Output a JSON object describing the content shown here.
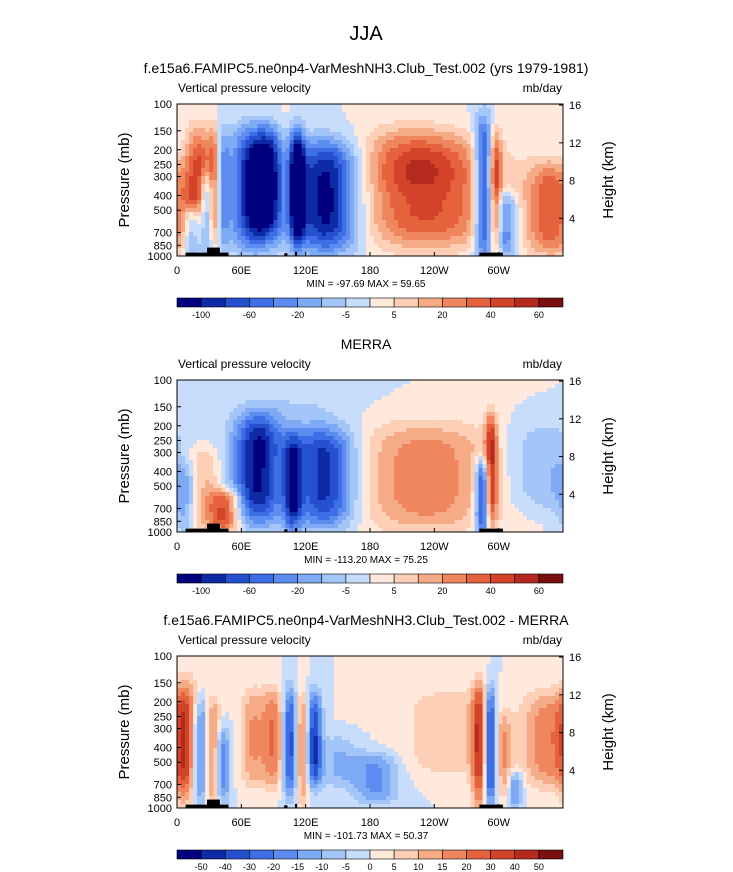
{
  "figure": {
    "title": "JJA"
  },
  "chart_data": [
    {
      "type": "heatmap",
      "title": "f.e15a6.FAMIPC5.ne0np4-VarMeshNH3.Club_Test.002 (yrs 1979-1981)",
      "left_label": "Vertical pressure velocity",
      "right_label": "mb/day",
      "ylabel": "Pressure (mb)",
      "y2label": "Height (km)",
      "yticks": [
        "100",
        "150",
        "200",
        "250",
        "300",
        "400",
        "500",
        "700",
        "850",
        "1000"
      ],
      "y2ticks": [
        "4",
        "8",
        "12",
        "16"
      ],
      "xticks": [
        "0",
        "60E",
        "120E",
        "180",
        "120W",
        "60W"
      ],
      "stats": "MIN = -97.69  MAX =  59.65",
      "colorbar": {
        "labels": [
          "-100",
          "-60",
          "-20",
          "-5",
          "5",
          "20",
          "40",
          "60"
        ],
        "colors": [
          "#00007f",
          "#0e2aa6",
          "#2550d0",
          "#3d6ee6",
          "#5c8cf0",
          "#7ea9f5",
          "#a3c5f8",
          "#c8ddfb",
          "#fee9dc",
          "#fccfb6",
          "#f6ab87",
          "#ef865d",
          "#e5623c",
          "#d3432a",
          "#b42a1e",
          "#7a0f0f"
        ]
      },
      "structure": [
        {
          "lon": 20,
          "w": 9,
          "p0": 150,
          "p1": 1000,
          "v": 40
        },
        {
          "lon": 15,
          "w": 6,
          "p0": 500,
          "p1": 1000,
          "v": -45
        },
        {
          "lon": 28,
          "w": 5,
          "p0": 300,
          "p1": 1000,
          "v": -40
        },
        {
          "lon": 35,
          "w": 4,
          "p0": 150,
          "p1": 900,
          "v": 35
        },
        {
          "lon": 42,
          "w": 5,
          "p0": 150,
          "p1": 900,
          "v": -25
        },
        {
          "lon": 72,
          "w": 14,
          "p0": 150,
          "p1": 850,
          "v": -60
        },
        {
          "lon": 88,
          "w": 9,
          "p0": 150,
          "p1": 700,
          "v": -30
        },
        {
          "lon": 112,
          "w": 5,
          "p0": 150,
          "p1": 800,
          "v": -55
        },
        {
          "lon": 140,
          "w": 22,
          "p0": 180,
          "p1": 900,
          "v": -60
        },
        {
          "lon": 100,
          "w": 5,
          "p0": 120,
          "p1": 600,
          "v": 6
        },
        {
          "lon": 232,
          "w": 45,
          "p0": 170,
          "p1": 850,
          "v": 40
        },
        {
          "lon": 218,
          "w": 30,
          "p0": 130,
          "p1": 350,
          "v": 10
        },
        {
          "lon": 286,
          "w": 6,
          "p0": 130,
          "p1": 1000,
          "v": -55
        },
        {
          "lon": 297,
          "w": 4,
          "p0": 150,
          "p1": 1000,
          "v": 35
        },
        {
          "lon": 306,
          "w": 8,
          "p0": 400,
          "p1": 950,
          "v": -35
        },
        {
          "lon": 348,
          "w": 16,
          "p0": 250,
          "p1": 950,
          "v": 35
        }
      ]
    },
    {
      "type": "heatmap",
      "title": "MERRA",
      "left_label": "Vertical pressure velocity",
      "right_label": "mb/day",
      "ylabel": "Pressure (mb)",
      "y2label": "Height (km)",
      "yticks": [
        "100",
        "150",
        "200",
        "250",
        "300",
        "400",
        "500",
        "700",
        "850",
        "1000"
      ],
      "y2ticks": [
        "4",
        "8",
        "12",
        "16"
      ],
      "xticks": [
        "0",
        "60E",
        "120E",
        "180",
        "120W",
        "60W"
      ],
      "stats": "MIN = -113.20  MAX =  75.25",
      "colorbar": {
        "labels": [
          "-100",
          "-60",
          "-20",
          "-5",
          "5",
          "20",
          "40",
          "60"
        ],
        "colors": [
          "#00007f",
          "#0e2aa6",
          "#2550d0",
          "#3d6ee6",
          "#5c8cf0",
          "#7ea9f5",
          "#a3c5f8",
          "#c8ddfb",
          "#fee9dc",
          "#fccfb6",
          "#f6ab87",
          "#ef865d",
          "#e5623c",
          "#d3432a",
          "#b42a1e",
          "#7a0f0f"
        ]
      },
      "structure": [
        {
          "lon": 20,
          "w": 12,
          "p0": 300,
          "p1": 1000,
          "v": 30
        },
        {
          "lon": 45,
          "w": 10,
          "p0": 550,
          "p1": 950,
          "v": 40
        },
        {
          "lon": 10,
          "w": 10,
          "p0": 350,
          "p1": 1000,
          "v": -30
        },
        {
          "lon": 75,
          "w": 16,
          "p0": 170,
          "p1": 850,
          "v": -55
        },
        {
          "lon": 108,
          "w": 6,
          "p0": 250,
          "p1": 950,
          "v": -40
        },
        {
          "lon": 138,
          "w": 20,
          "p0": 220,
          "p1": 900,
          "v": -50
        },
        {
          "lon": 120,
          "w": 28,
          "p0": 120,
          "p1": 300,
          "v": -8
        },
        {
          "lon": 232,
          "w": 45,
          "p0": 200,
          "p1": 950,
          "v": 28
        },
        {
          "lon": 285,
          "w": 5,
          "p0": 350,
          "p1": 1000,
          "v": -55
        },
        {
          "lon": 293,
          "w": 4,
          "p0": 170,
          "p1": 900,
          "v": 45
        },
        {
          "lon": 342,
          "w": 25,
          "p0": 200,
          "p1": 700,
          "v": -15
        }
      ]
    },
    {
      "type": "heatmap",
      "title": "f.e15a6.FAMIPC5.ne0np4-VarMeshNH3.Club_Test.002 - MERRA",
      "left_label": "Vertical pressure velocity",
      "right_label": "mb/day",
      "ylabel": "Pressure (mb)",
      "y2label": "Height (km)",
      "yticks": [
        "100",
        "150",
        "200",
        "250",
        "300",
        "400",
        "500",
        "700",
        "850",
        "1000"
      ],
      "y2ticks": [
        "4",
        "8",
        "12",
        "16"
      ],
      "xticks": [
        "0",
        "60E",
        "120E",
        "180",
        "120W",
        "60W"
      ],
      "stats": "MIN = -101.73  MAX =  50.37",
      "colorbar": {
        "labels": [
          "-50",
          "-40",
          "-30",
          "-20",
          "-15",
          "-10",
          "-5",
          "0",
          "5",
          "10",
          "15",
          "20",
          "30",
          "40",
          "50"
        ],
        "colors": [
          "#00007f",
          "#0e2aa6",
          "#2550d0",
          "#3d6ee6",
          "#5c8cf0",
          "#7ea9f5",
          "#a3c5f8",
          "#c8ddfb",
          "#fee9dc",
          "#fccfb6",
          "#f6ab87",
          "#ef865d",
          "#e5623c",
          "#d3432a",
          "#b42a1e",
          "#7a0f0f"
        ]
      },
      "structure": [
        {
          "lon": 8,
          "w": 8,
          "p0": 150,
          "p1": 900,
          "v": 38
        },
        {
          "lon": 22,
          "w": 6,
          "p0": 200,
          "p1": 900,
          "v": -38
        },
        {
          "lon": 33,
          "w": 5,
          "p0": 200,
          "p1": 950,
          "v": 35
        },
        {
          "lon": 42,
          "w": 5,
          "p0": 300,
          "p1": 900,
          "v": -30
        },
        {
          "lon": 70,
          "w": 8,
          "p0": 170,
          "p1": 700,
          "v": 22
        },
        {
          "lon": 90,
          "w": 8,
          "p0": 170,
          "p1": 700,
          "v": 30
        },
        {
          "lon": 105,
          "w": 5,
          "p0": 170,
          "p1": 800,
          "v": -45
        },
        {
          "lon": 117,
          "w": 4,
          "p0": 180,
          "p1": 900,
          "v": 30
        },
        {
          "lon": 128,
          "w": 5,
          "p0": 180,
          "p1": 700,
          "v": -45
        },
        {
          "lon": 150,
          "w": 14,
          "p0": 350,
          "p1": 700,
          "v": -15
        },
        {
          "lon": 185,
          "w": 15,
          "p0": 450,
          "p1": 900,
          "v": -25
        },
        {
          "lon": 255,
          "w": 30,
          "p0": 170,
          "p1": 600,
          "v": 15
        },
        {
          "lon": 282,
          "w": 5,
          "p0": 150,
          "p1": 1000,
          "v": 40
        },
        {
          "lon": 292,
          "w": 4,
          "p0": 170,
          "p1": 900,
          "v": -55
        },
        {
          "lon": 305,
          "w": 5,
          "p0": 250,
          "p1": 900,
          "v": 20
        },
        {
          "lon": 315,
          "w": 5,
          "p0": 600,
          "p1": 950,
          "v": -25
        },
        {
          "lon": 345,
          "w": 16,
          "p0": 180,
          "p1": 700,
          "v": 28
        }
      ]
    }
  ]
}
